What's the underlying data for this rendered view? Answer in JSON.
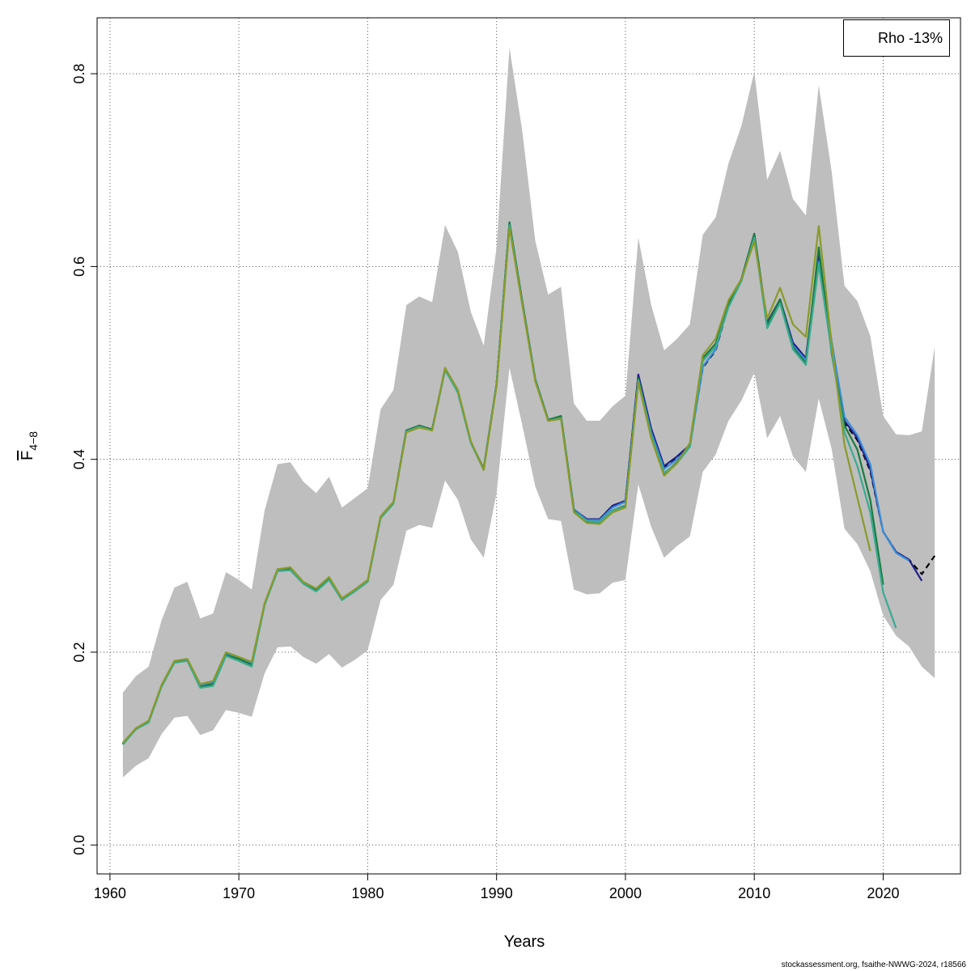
{
  "chart_data": {
    "type": "line",
    "xlabel": "Years",
    "ylabel_main": "F",
    "ylabel_sub": "4−8",
    "xlim": [
      1959,
      2026
    ],
    "ylim": [
      -0.03,
      0.858
    ],
    "x_ticks": [
      1960,
      1970,
      1980,
      1990,
      2000,
      2010,
      2020
    ],
    "y_ticks": [
      0.0,
      0.2,
      0.4,
      0.6,
      0.8
    ],
    "y_tick_labels": [
      "0.0",
      "0.2",
      "0.4",
      "0.6",
      "0.8"
    ],
    "grid": true,
    "legend_position": "top-right",
    "legend_text": "Rho -13%",
    "confidence_band": {
      "fill_color": "#bebebe",
      "x": [
        1961,
        1962,
        1963,
        1964,
        1965,
        1966,
        1967,
        1968,
        1969,
        1970,
        1971,
        1972,
        1973,
        1974,
        1975,
        1976,
        1977,
        1978,
        1979,
        1980,
        1981,
        1982,
        1983,
        1984,
        1985,
        1986,
        1987,
        1988,
        1989,
        1990,
        1991,
        1992,
        1993,
        1994,
        1995,
        1996,
        1997,
        1998,
        1999,
        2000,
        2001,
        2002,
        2003,
        2004,
        2005,
        2006,
        2007,
        2008,
        2009,
        2010,
        2011,
        2012,
        2013,
        2014,
        2015,
        2016,
        2017,
        2018,
        2019,
        2020,
        2021,
        2022,
        2023,
        2024
      ],
      "upper": [
        0.158,
        0.175,
        0.185,
        0.233,
        0.267,
        0.273,
        0.235,
        0.24,
        0.283,
        0.275,
        0.265,
        0.347,
        0.395,
        0.397,
        0.377,
        0.365,
        0.382,
        0.35,
        0.36,
        0.37,
        0.452,
        0.472,
        0.56,
        0.569,
        0.563,
        0.643,
        0.615,
        0.553,
        0.518,
        0.62,
        0.827,
        0.74,
        0.627,
        0.571,
        0.579,
        0.458,
        0.44,
        0.44,
        0.455,
        0.466,
        0.63,
        0.56,
        0.513,
        0.525,
        0.54,
        0.633,
        0.651,
        0.707,
        0.746,
        0.802,
        0.69,
        0.72,
        0.67,
        0.653,
        0.788,
        0.699,
        0.58,
        0.564,
        0.528,
        0.445,
        0.426,
        0.425,
        0.429,
        0.517
      ],
      "lower": [
        0.07,
        0.082,
        0.09,
        0.115,
        0.132,
        0.134,
        0.114,
        0.119,
        0.14,
        0.137,
        0.133,
        0.178,
        0.205,
        0.206,
        0.195,
        0.188,
        0.198,
        0.184,
        0.192,
        0.202,
        0.254,
        0.27,
        0.326,
        0.332,
        0.329,
        0.378,
        0.358,
        0.317,
        0.298,
        0.365,
        0.495,
        0.435,
        0.372,
        0.338,
        0.336,
        0.265,
        0.26,
        0.261,
        0.272,
        0.275,
        0.374,
        0.33,
        0.298,
        0.31,
        0.32,
        0.387,
        0.405,
        0.44,
        0.461,
        0.49,
        0.422,
        0.445,
        0.403,
        0.387,
        0.463,
        0.411,
        0.328,
        0.312,
        0.284,
        0.238,
        0.217,
        0.206,
        0.185,
        0.173
      ]
    },
    "series": [
      {
        "color": "#000000",
        "dashed": true,
        "x": [
          1961,
          1962,
          1963,
          1964,
          1965,
          1966,
          1967,
          1968,
          1969,
          1970,
          1971,
          1972,
          1973,
          1974,
          1975,
          1976,
          1977,
          1978,
          1979,
          1980,
          1981,
          1982,
          1983,
          1984,
          1985,
          1986,
          1987,
          1988,
          1989,
          1990,
          1991,
          1992,
          1993,
          1994,
          1995,
          1996,
          1997,
          1998,
          1999,
          2000,
          2001,
          2002,
          2003,
          2004,
          2005,
          2006,
          2007,
          2008,
          2009,
          2010,
          2011,
          2012,
          2013,
          2014,
          2015,
          2016,
          2017,
          2018,
          2019,
          2020,
          2021,
          2022,
          2023,
          2024
        ],
        "y": [
          0.105,
          0.12,
          0.128,
          0.165,
          0.19,
          0.192,
          0.165,
          0.168,
          0.198,
          0.194,
          0.188,
          0.25,
          0.285,
          0.287,
          0.272,
          0.265,
          0.277,
          0.255,
          0.264,
          0.274,
          0.34,
          0.355,
          0.43,
          0.435,
          0.431,
          0.493,
          0.47,
          0.418,
          0.39,
          0.478,
          0.645,
          0.563,
          0.483,
          0.441,
          0.444,
          0.348,
          0.338,
          0.338,
          0.352,
          0.357,
          0.487,
          0.43,
          0.392,
          0.402,
          0.414,
          0.495,
          0.513,
          0.56,
          0.586,
          0.633,
          0.54,
          0.565,
          0.52,
          0.505,
          0.61,
          0.52,
          0.438,
          0.42,
          0.388,
          0.325,
          0.304,
          0.296,
          0.281,
          0.3
        ]
      },
      {
        "color": "#20208a",
        "dashed": false,
        "x": [
          1961,
          1962,
          1963,
          1964,
          1965,
          1966,
          1967,
          1968,
          1969,
          1970,
          1971,
          1972,
          1973,
          1974,
          1975,
          1976,
          1977,
          1978,
          1979,
          1980,
          1981,
          1982,
          1983,
          1984,
          1985,
          1986,
          1987,
          1988,
          1989,
          1990,
          1991,
          1992,
          1993,
          1994,
          1995,
          1996,
          1997,
          1998,
          1999,
          2000,
          2001,
          2002,
          2003,
          2004,
          2005,
          2006,
          2007,
          2008,
          2009,
          2010,
          2011,
          2012,
          2013,
          2014,
          2015,
          2016,
          2017,
          2018,
          2019,
          2020,
          2021,
          2022,
          2023
        ],
        "y": [
          0.105,
          0.12,
          0.128,
          0.165,
          0.19,
          0.192,
          0.165,
          0.168,
          0.198,
          0.194,
          0.188,
          0.25,
          0.285,
          0.287,
          0.272,
          0.265,
          0.277,
          0.255,
          0.264,
          0.274,
          0.34,
          0.355,
          0.43,
          0.435,
          0.431,
          0.493,
          0.47,
          0.418,
          0.39,
          0.478,
          0.645,
          0.563,
          0.483,
          0.441,
          0.444,
          0.348,
          0.338,
          0.338,
          0.352,
          0.357,
          0.488,
          0.432,
          0.393,
          0.403,
          0.415,
          0.496,
          0.514,
          0.561,
          0.587,
          0.634,
          0.542,
          0.566,
          0.521,
          0.505,
          0.612,
          0.522,
          0.44,
          0.422,
          0.39,
          0.325,
          0.304,
          0.296,
          0.274
        ]
      },
      {
        "color": "#3a8fd8",
        "dashed": false,
        "x": [
          1961,
          1962,
          1963,
          1964,
          1965,
          1966,
          1967,
          1968,
          1969,
          1970,
          1971,
          1972,
          1973,
          1974,
          1975,
          1976,
          1977,
          1978,
          1979,
          1980,
          1981,
          1982,
          1983,
          1984,
          1985,
          1986,
          1987,
          1988,
          1989,
          1990,
          1991,
          1992,
          1993,
          1994,
          1995,
          1996,
          1997,
          1998,
          1999,
          2000,
          2001,
          2002,
          2003,
          2004,
          2005,
          2006,
          2007,
          2008,
          2009,
          2010,
          2011,
          2012,
          2013,
          2014,
          2015,
          2016,
          2017,
          2018,
          2019,
          2020,
          2021,
          2022
        ],
        "y": [
          0.105,
          0.12,
          0.128,
          0.165,
          0.19,
          0.192,
          0.165,
          0.168,
          0.198,
          0.194,
          0.188,
          0.25,
          0.285,
          0.287,
          0.272,
          0.265,
          0.277,
          0.255,
          0.264,
          0.274,
          0.34,
          0.355,
          0.43,
          0.435,
          0.431,
          0.493,
          0.47,
          0.418,
          0.39,
          0.478,
          0.645,
          0.563,
          0.483,
          0.441,
          0.444,
          0.348,
          0.337,
          0.337,
          0.35,
          0.356,
          0.484,
          0.428,
          0.39,
          0.4,
          0.413,
          0.496,
          0.514,
          0.561,
          0.587,
          0.633,
          0.54,
          0.564,
          0.518,
          0.503,
          0.605,
          0.522,
          0.444,
          0.425,
          0.395,
          0.325,
          0.303,
          0.295
        ]
      },
      {
        "color": "#1a7a40",
        "dashed": false,
        "x": [
          1961,
          1962,
          1963,
          1964,
          1965,
          1966,
          1967,
          1968,
          1969,
          1970,
          1971,
          1972,
          1973,
          1974,
          1975,
          1976,
          1977,
          1978,
          1979,
          1980,
          1981,
          1982,
          1983,
          1984,
          1985,
          1986,
          1987,
          1988,
          1989,
          1990,
          1991,
          1992,
          1993,
          1994,
          1995,
          1996,
          1997,
          1998,
          1999,
          2000,
          2001,
          2002,
          2003,
          2004,
          2005,
          2006,
          2007,
          2008,
          2009,
          2010,
          2011,
          2012,
          2013,
          2014,
          2015,
          2016,
          2017,
          2018,
          2019,
          2020
        ],
        "y": [
          0.105,
          0.12,
          0.128,
          0.165,
          0.19,
          0.192,
          0.164,
          0.167,
          0.197,
          0.193,
          0.187,
          0.25,
          0.286,
          0.287,
          0.272,
          0.264,
          0.277,
          0.255,
          0.264,
          0.274,
          0.34,
          0.355,
          0.43,
          0.435,
          0.431,
          0.494,
          0.47,
          0.418,
          0.39,
          0.478,
          0.646,
          0.563,
          0.483,
          0.441,
          0.445,
          0.347,
          0.335,
          0.334,
          0.347,
          0.352,
          0.484,
          0.425,
          0.385,
          0.397,
          0.414,
          0.505,
          0.52,
          0.562,
          0.587,
          0.634,
          0.54,
          0.566,
          0.516,
          0.5,
          0.62,
          0.51,
          0.435,
          0.41,
          0.358,
          0.27
        ]
      },
      {
        "color": "#3aaa90",
        "dashed": false,
        "x": [
          1961,
          1962,
          1963,
          1964,
          1965,
          1966,
          1967,
          1968,
          1969,
          1970,
          1971,
          1972,
          1973,
          1974,
          1975,
          1976,
          1977,
          1978,
          1979,
          1980,
          1981,
          1982,
          1983,
          1984,
          1985,
          1986,
          1987,
          1988,
          1989,
          1990,
          1991,
          1992,
          1993,
          1994,
          1995,
          1996,
          1997,
          1998,
          1999,
          2000,
          2001,
          2002,
          2003,
          2004,
          2005,
          2006,
          2007,
          2008,
          2009,
          2010,
          2011,
          2012,
          2013,
          2014,
          2015,
          2016,
          2017,
          2018,
          2019,
          2020,
          2021
        ],
        "y": [
          0.104,
          0.12,
          0.127,
          0.164,
          0.189,
          0.191,
          0.163,
          0.165,
          0.196,
          0.191,
          0.185,
          0.249,
          0.284,
          0.285,
          0.271,
          0.263,
          0.275,
          0.254,
          0.263,
          0.273,
          0.339,
          0.354,
          0.429,
          0.434,
          0.43,
          0.493,
          0.469,
          0.417,
          0.389,
          0.477,
          0.643,
          0.561,
          0.482,
          0.44,
          0.443,
          0.346,
          0.336,
          0.335,
          0.347,
          0.351,
          0.482,
          0.425,
          0.386,
          0.396,
          0.413,
          0.502,
          0.517,
          0.558,
          0.585,
          0.63,
          0.536,
          0.562,
          0.514,
          0.498,
          0.602,
          0.512,
          0.428,
          0.393,
          0.345,
          0.262,
          0.225
        ]
      },
      {
        "color": "#8a9a2a",
        "dashed": false,
        "x": [
          1961,
          1962,
          1963,
          1964,
          1965,
          1966,
          1967,
          1968,
          1969,
          1970,
          1971,
          1972,
          1973,
          1974,
          1975,
          1976,
          1977,
          1978,
          1979,
          1980,
          1981,
          1982,
          1983,
          1984,
          1985,
          1986,
          1987,
          1988,
          1989,
          1990,
          1991,
          1992,
          1993,
          1994,
          1995,
          1996,
          1997,
          1998,
          1999,
          2000,
          2001,
          2002,
          2003,
          2004,
          2005,
          2006,
          2007,
          2008,
          2009,
          2010,
          2011,
          2012,
          2013,
          2014,
          2015,
          2016,
          2017,
          2018,
          2019
        ],
        "y": [
          0.106,
          0.121,
          0.129,
          0.166,
          0.191,
          0.193,
          0.167,
          0.17,
          0.2,
          0.195,
          0.19,
          0.251,
          0.286,
          0.288,
          0.273,
          0.266,
          0.278,
          0.256,
          0.265,
          0.275,
          0.341,
          0.356,
          0.428,
          0.433,
          0.43,
          0.495,
          0.472,
          0.419,
          0.389,
          0.476,
          0.64,
          0.56,
          0.481,
          0.44,
          0.442,
          0.345,
          0.334,
          0.333,
          0.345,
          0.35,
          0.48,
          0.422,
          0.383,
          0.396,
          0.417,
          0.508,
          0.525,
          0.565,
          0.587,
          0.626,
          0.546,
          0.578,
          0.54,
          0.527,
          0.642,
          0.52,
          0.415,
          0.36,
          0.305
        ]
      }
    ]
  },
  "footer_text": "stockassessment.org, fsaithe-NWWG-2024, r18566"
}
